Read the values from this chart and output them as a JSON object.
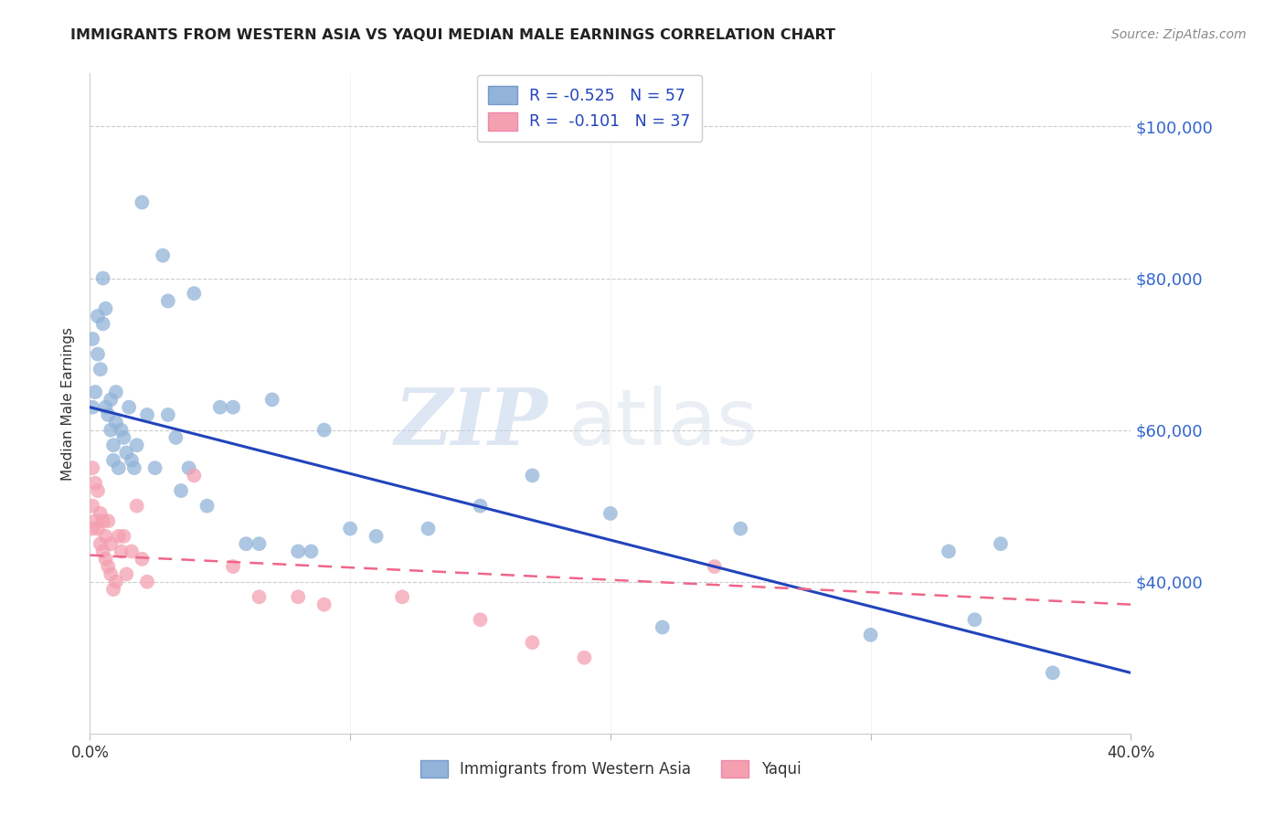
{
  "title": "IMMIGRANTS FROM WESTERN ASIA VS YAQUI MEDIAN MALE EARNINGS CORRELATION CHART",
  "source": "Source: ZipAtlas.com",
  "ylabel": "Median Male Earnings",
  "y_ticks": [
    40000,
    60000,
    80000,
    100000
  ],
  "y_tick_labels": [
    "$40,000",
    "$60,000",
    "$80,000",
    "$100,000"
  ],
  "xlim": [
    0.0,
    0.4
  ],
  "ylim": [
    20000,
    107000
  ],
  "blue_R": "-0.525",
  "blue_N": "57",
  "pink_R": "-0.101",
  "pink_N": "37",
  "blue_color": "#92B4D8",
  "pink_color": "#F4A0B0",
  "blue_line_color": "#2244BB",
  "pink_line_color": "#EE6688",
  "watermark_zip": "ZIP",
  "watermark_atlas": "atlas",
  "blue_line_x0": 0.0,
  "blue_line_y0": 63000,
  "blue_line_x1": 0.4,
  "blue_line_y1": 28000,
  "pink_line_x0": 0.0,
  "pink_line_y0": 43500,
  "pink_line_x1": 0.4,
  "pink_line_y1": 37000,
  "blue_scatter_x": [
    0.001,
    0.001,
    0.002,
    0.003,
    0.003,
    0.004,
    0.005,
    0.005,
    0.006,
    0.006,
    0.007,
    0.008,
    0.008,
    0.009,
    0.009,
    0.01,
    0.01,
    0.011,
    0.012,
    0.013,
    0.014,
    0.015,
    0.016,
    0.017,
    0.018,
    0.02,
    0.022,
    0.025,
    0.028,
    0.03,
    0.03,
    0.033,
    0.035,
    0.038,
    0.04,
    0.045,
    0.05,
    0.055,
    0.06,
    0.065,
    0.07,
    0.08,
    0.085,
    0.09,
    0.1,
    0.11,
    0.13,
    0.15,
    0.17,
    0.2,
    0.22,
    0.25,
    0.3,
    0.33,
    0.34,
    0.35,
    0.37
  ],
  "blue_scatter_y": [
    63000,
    72000,
    65000,
    70000,
    75000,
    68000,
    74000,
    80000,
    76000,
    63000,
    62000,
    64000,
    60000,
    56000,
    58000,
    65000,
    61000,
    55000,
    60000,
    59000,
    57000,
    63000,
    56000,
    55000,
    58000,
    90000,
    62000,
    55000,
    83000,
    77000,
    62000,
    59000,
    52000,
    55000,
    78000,
    50000,
    63000,
    63000,
    45000,
    45000,
    64000,
    44000,
    44000,
    60000,
    47000,
    46000,
    47000,
    50000,
    54000,
    49000,
    34000,
    47000,
    33000,
    44000,
    35000,
    45000,
    28000
  ],
  "pink_scatter_x": [
    0.001,
    0.001,
    0.001,
    0.002,
    0.002,
    0.003,
    0.003,
    0.004,
    0.004,
    0.005,
    0.005,
    0.006,
    0.006,
    0.007,
    0.007,
    0.008,
    0.008,
    0.009,
    0.01,
    0.011,
    0.012,
    0.013,
    0.014,
    0.016,
    0.018,
    0.02,
    0.022,
    0.04,
    0.055,
    0.065,
    0.08,
    0.09,
    0.12,
    0.15,
    0.17,
    0.19,
    0.24
  ],
  "pink_scatter_y": [
    55000,
    50000,
    47000,
    53000,
    48000,
    52000,
    47000,
    49000,
    45000,
    48000,
    44000,
    46000,
    43000,
    48000,
    42000,
    45000,
    41000,
    39000,
    40000,
    46000,
    44000,
    46000,
    41000,
    44000,
    50000,
    43000,
    40000,
    54000,
    42000,
    38000,
    38000,
    37000,
    38000,
    35000,
    32000,
    30000,
    42000
  ]
}
